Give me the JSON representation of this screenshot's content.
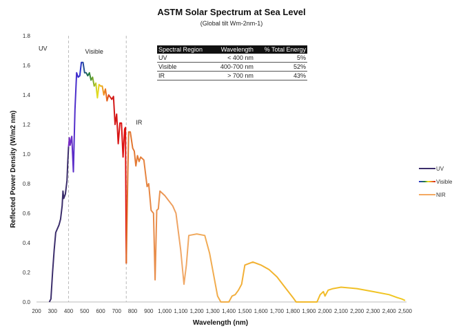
{
  "chart_data": {
    "type": "line",
    "title": "ASTM Solar Spectrum at Sea Level",
    "subtitle": "(Global tilt  Wm-2nm-1)",
    "xlabel": "Wavelength (nm)",
    "ylabel": "Reflected Power Density (W/m2 nm)",
    "xlim": [
      200,
      2500
    ],
    "ylim": [
      0,
      1.8
    ],
    "xticks": [
      "200",
      "300",
      "400",
      "500",
      "600",
      "700",
      "800",
      "900",
      "1,000",
      "1,100",
      "1,200",
      "1,300",
      "1,400",
      "1,500",
      "1,600",
      "1,700",
      "1,800",
      "1,900",
      "2,000",
      "2,100",
      "2,200",
      "2,300",
      "2,400",
      "2,500"
    ],
    "xtick_values": [
      200,
      300,
      400,
      500,
      600,
      700,
      800,
      900,
      1000,
      1100,
      1200,
      1300,
      1400,
      1500,
      1600,
      1700,
      1800,
      1900,
      2000,
      2100,
      2200,
      2300,
      2400,
      2500
    ],
    "yticks": [
      "0.0",
      "0.2",
      "0.4",
      "0.6",
      "0.8",
      "1.0",
      "1.2",
      "1.4",
      "1.6",
      "1.8"
    ],
    "ytick_values": [
      0,
      0.2,
      0.4,
      0.6,
      0.8,
      1.0,
      1.2,
      1.4,
      1.6,
      1.8
    ],
    "region_labels": [
      {
        "text": "UV",
        "x": 240,
        "y": 1.7
      },
      {
        "text": "Visible",
        "x": 560,
        "y": 1.68
      },
      {
        "text": "IR",
        "x": 840,
        "y": 1.2
      }
    ],
    "dividers": [
      400,
      760
    ],
    "legend_position": "right",
    "series": [
      {
        "name": "UV",
        "color": "#3b2d6b",
        "points": [
          [
            280,
            0
          ],
          [
            290,
            0.02
          ],
          [
            300,
            0.2
          ],
          [
            310,
            0.35
          ],
          [
            320,
            0.47
          ],
          [
            340,
            0.52
          ],
          [
            350,
            0.56
          ],
          [
            360,
            0.65
          ],
          [
            365,
            0.75
          ],
          [
            370,
            0.7
          ],
          [
            380,
            0.73
          ],
          [
            390,
            0.82
          ],
          [
            395,
            0.95
          ],
          [
            400,
            1.05
          ]
        ]
      },
      {
        "name": "Visible",
        "color": "rainbow",
        "points": [
          [
            400,
            1.05
          ],
          [
            405,
            1.11
          ],
          [
            410,
            1.06
          ],
          [
            420,
            1.12
          ],
          [
            430,
            0.88
          ],
          [
            440,
            1.3
          ],
          [
            450,
            1.55
          ],
          [
            460,
            1.52
          ],
          [
            470,
            1.53
          ],
          [
            480,
            1.62
          ],
          [
            490,
            1.62
          ],
          [
            500,
            1.55
          ],
          [
            510,
            1.55
          ],
          [
            520,
            1.53
          ],
          [
            530,
            1.55
          ],
          [
            540,
            1.5
          ],
          [
            550,
            1.52
          ],
          [
            560,
            1.46
          ],
          [
            570,
            1.48
          ],
          [
            580,
            1.38
          ],
          [
            590,
            1.47
          ],
          [
            600,
            1.46
          ],
          [
            610,
            1.46
          ],
          [
            620,
            1.4
          ],
          [
            630,
            1.44
          ],
          [
            640,
            1.36
          ],
          [
            650,
            1.4
          ],
          [
            670,
            1.37
          ],
          [
            680,
            1.39
          ],
          [
            690,
            1.2
          ],
          [
            700,
            1.27
          ],
          [
            710,
            1.07
          ],
          [
            720,
            1.21
          ],
          [
            730,
            1.21
          ],
          [
            740,
            0.98
          ],
          [
            750,
            1.17
          ],
          [
            755,
            1.18
          ],
          [
            760,
            0.26
          ]
        ]
      },
      {
        "name": "NIR",
        "color": "#f4a860",
        "points": [
          [
            760,
            0.26
          ],
          [
            770,
            0.9
          ],
          [
            775,
            1.15
          ],
          [
            785,
            1.15
          ],
          [
            800,
            1.04
          ],
          [
            810,
            1.02
          ],
          [
            820,
            0.92
          ],
          [
            830,
            0.99
          ],
          [
            840,
            0.95
          ],
          [
            850,
            0.98
          ],
          [
            870,
            0.96
          ],
          [
            890,
            0.78
          ],
          [
            900,
            0.8
          ],
          [
            915,
            0.62
          ],
          [
            930,
            0.6
          ],
          [
            940,
            0.15
          ],
          [
            950,
            0.62
          ],
          [
            960,
            0.63
          ],
          [
            970,
            0.75
          ],
          [
            1000,
            0.72
          ],
          [
            1050,
            0.65
          ],
          [
            1070,
            0.6
          ],
          [
            1100,
            0.35
          ],
          [
            1120,
            0.12
          ],
          [
            1135,
            0.25
          ],
          [
            1150,
            0.45
          ],
          [
            1200,
            0.46
          ],
          [
            1250,
            0.45
          ],
          [
            1280,
            0.33
          ],
          [
            1330,
            0.04
          ],
          [
            1350,
            0
          ],
          [
            1400,
            0
          ],
          [
            1420,
            0.04
          ],
          [
            1440,
            0.05
          ],
          [
            1460,
            0.08
          ],
          [
            1480,
            0.12
          ],
          [
            1500,
            0.25
          ],
          [
            1550,
            0.27
          ],
          [
            1600,
            0.25
          ],
          [
            1650,
            0.22
          ],
          [
            1700,
            0.17
          ],
          [
            1750,
            0.1
          ],
          [
            1800,
            0.03
          ],
          [
            1820,
            0
          ],
          [
            1950,
            0
          ],
          [
            1970,
            0.05
          ],
          [
            1990,
            0.07
          ],
          [
            2000,
            0.04
          ],
          [
            2020,
            0.08
          ],
          [
            2050,
            0.09
          ],
          [
            2100,
            0.1
          ],
          [
            2200,
            0.09
          ],
          [
            2300,
            0.07
          ],
          [
            2400,
            0.05
          ],
          [
            2450,
            0.03
          ],
          [
            2480,
            0.02
          ],
          [
            2500,
            0.01
          ]
        ]
      }
    ]
  },
  "table": {
    "headers": [
      "Spectral Region",
      "Wavelength",
      "% Total Energy"
    ],
    "rows": [
      [
        "UV",
        "< 400 nm",
        "5%"
      ],
      [
        "Visible",
        "400-700 nm",
        "52%"
      ],
      [
        "IR",
        "> 700 nm",
        "43%"
      ]
    ]
  }
}
